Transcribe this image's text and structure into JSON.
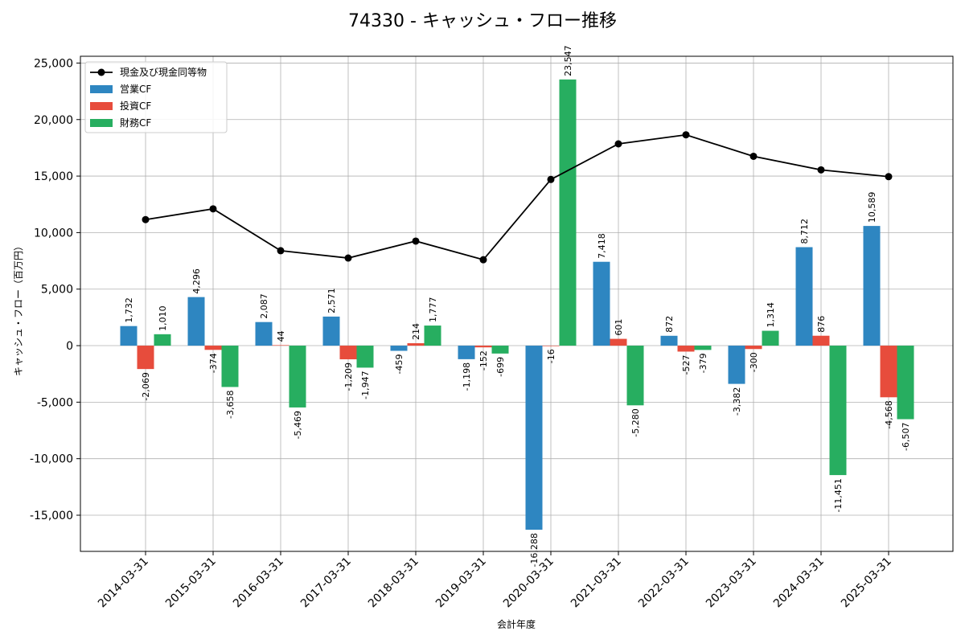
{
  "chart_data": {
    "type": "bar",
    "title": "74330 - キャッシュ・フロー推移",
    "xlabel": "会計年度",
    "ylabel": "キャッシュ・フロー（百万円）",
    "categories": [
      "2014-03-31",
      "2015-03-31",
      "2016-03-31",
      "2017-03-31",
      "2018-03-31",
      "2019-03-31",
      "2020-03-31",
      "2021-03-31",
      "2022-03-31",
      "2023-03-31",
      "2024-03-31",
      "2025-03-31"
    ],
    "ylim": [
      -18200,
      25600
    ],
    "yticks": [
      -15000,
      -10000,
      -5000,
      0,
      5000,
      10000,
      15000,
      20000,
      25000
    ],
    "ytick_labels": [
      "-15,000",
      "-10,000",
      "-5,000",
      "0",
      "5,000",
      "10,000",
      "15,000",
      "20,000",
      "25,000"
    ],
    "grid": true,
    "legend_position": "top-left",
    "series": [
      {
        "name": "現金及び現金同等物",
        "kind": "line",
        "color": "#000000",
        "values": [
          11150,
          12100,
          8400,
          7750,
          9250,
          7600,
          14700,
          17850,
          18650,
          16750,
          15550,
          14950
        ]
      },
      {
        "name": "営業CF",
        "kind": "bar",
        "color": "#2e86c1",
        "values": [
          1732,
          4296,
          2087,
          2571,
          -459,
          -1198,
          -16288,
          7418,
          872,
          -3382,
          8712,
          10589
        ],
        "labels": [
          "1,732",
          "4,296",
          "2,087",
          "2,571",
          "-459",
          "-1,198",
          "-16,288",
          "7,418",
          "872",
          "-3,382",
          "8,712",
          "10,589"
        ]
      },
      {
        "name": "投資CF",
        "kind": "bar",
        "color": "#e74c3c",
        "values": [
          -2069,
          -374,
          44,
          -1209,
          214,
          -152,
          -16,
          601,
          -527,
          -300,
          876,
          -4568
        ],
        "labels": [
          "-2,069",
          "-374",
          "44",
          "-1,209",
          "214",
          "-152",
          "-16",
          "601",
          "-527",
          "-300",
          "876",
          "-4,568"
        ]
      },
      {
        "name": "財務CF",
        "kind": "bar",
        "color": "#27ae60",
        "values": [
          1010,
          -3658,
          -5469,
          -1947,
          1777,
          -699,
          23547,
          -5280,
          -379,
          1314,
          -11451,
          -6507
        ],
        "labels": [
          "1,010",
          "-3,658",
          "-5,469",
          "-1,947",
          "1,777",
          "-699",
          "23,547",
          "-5,280",
          "-379",
          "1,314",
          "-11,451",
          "-6,507"
        ]
      }
    ]
  }
}
